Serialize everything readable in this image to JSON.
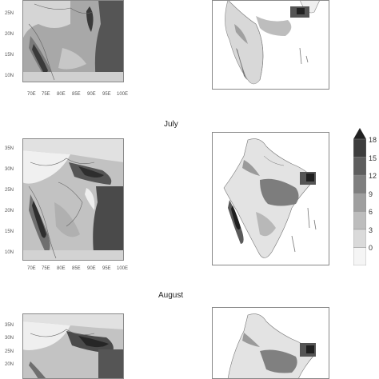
{
  "rows": [
    {
      "month": "",
      "y_ticks": [
        "25N",
        "20N",
        "15N",
        "10N"
      ],
      "x_ticks": [
        "70E",
        "75E",
        "80E",
        "85E",
        "90E",
        "95E",
        "100E"
      ]
    },
    {
      "month": "July",
      "y_ticks": [
        "35N",
        "30N",
        "25N",
        "20N",
        "15N",
        "10N"
      ],
      "x_ticks": [
        "70E",
        "75E",
        "80E",
        "85E",
        "90E",
        "95E",
        "100E"
      ]
    },
    {
      "month": "August",
      "y_ticks": [
        "35N",
        "30N",
        "25N",
        "20N"
      ],
      "x_ticks": []
    }
  ],
  "colorbar": {
    "labels": [
      "18",
      "15",
      "12",
      "9",
      "6",
      "3",
      "0"
    ],
    "colors": [
      "#3d3d3d",
      "#5e5e5e",
      "#7f7f7f",
      "#9f9f9f",
      "#bdbdbd",
      "#dadada",
      "#f5f5f5"
    ]
  }
}
